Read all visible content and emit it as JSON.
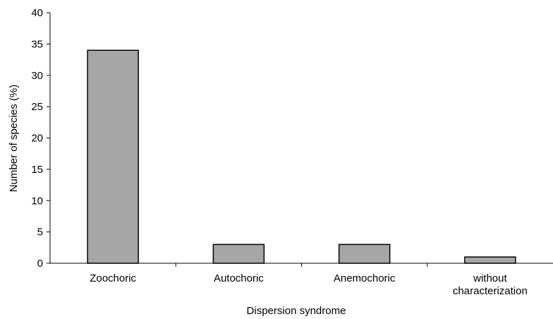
{
  "chart_data": {
    "type": "bar",
    "categories": [
      "Zoochoric",
      "Autochoric",
      "Anemochoric",
      "without characterization"
    ],
    "category_lines": [
      [
        "Zoochoric"
      ],
      [
        "Autochoric"
      ],
      [
        "Anemochoric"
      ],
      [
        "without",
        "characterization"
      ]
    ],
    "values": [
      34,
      3,
      3,
      1
    ],
    "xlabel": "Dispersion syndrome",
    "ylabel": "Number of species (%)",
    "ylim": [
      0,
      40
    ],
    "yticks": [
      0,
      5,
      10,
      15,
      20,
      25,
      30,
      35,
      40
    ],
    "grid": false,
    "legend": "none",
    "bar_color": "#a6a6a6",
    "bar_edge_color": "#000000"
  }
}
